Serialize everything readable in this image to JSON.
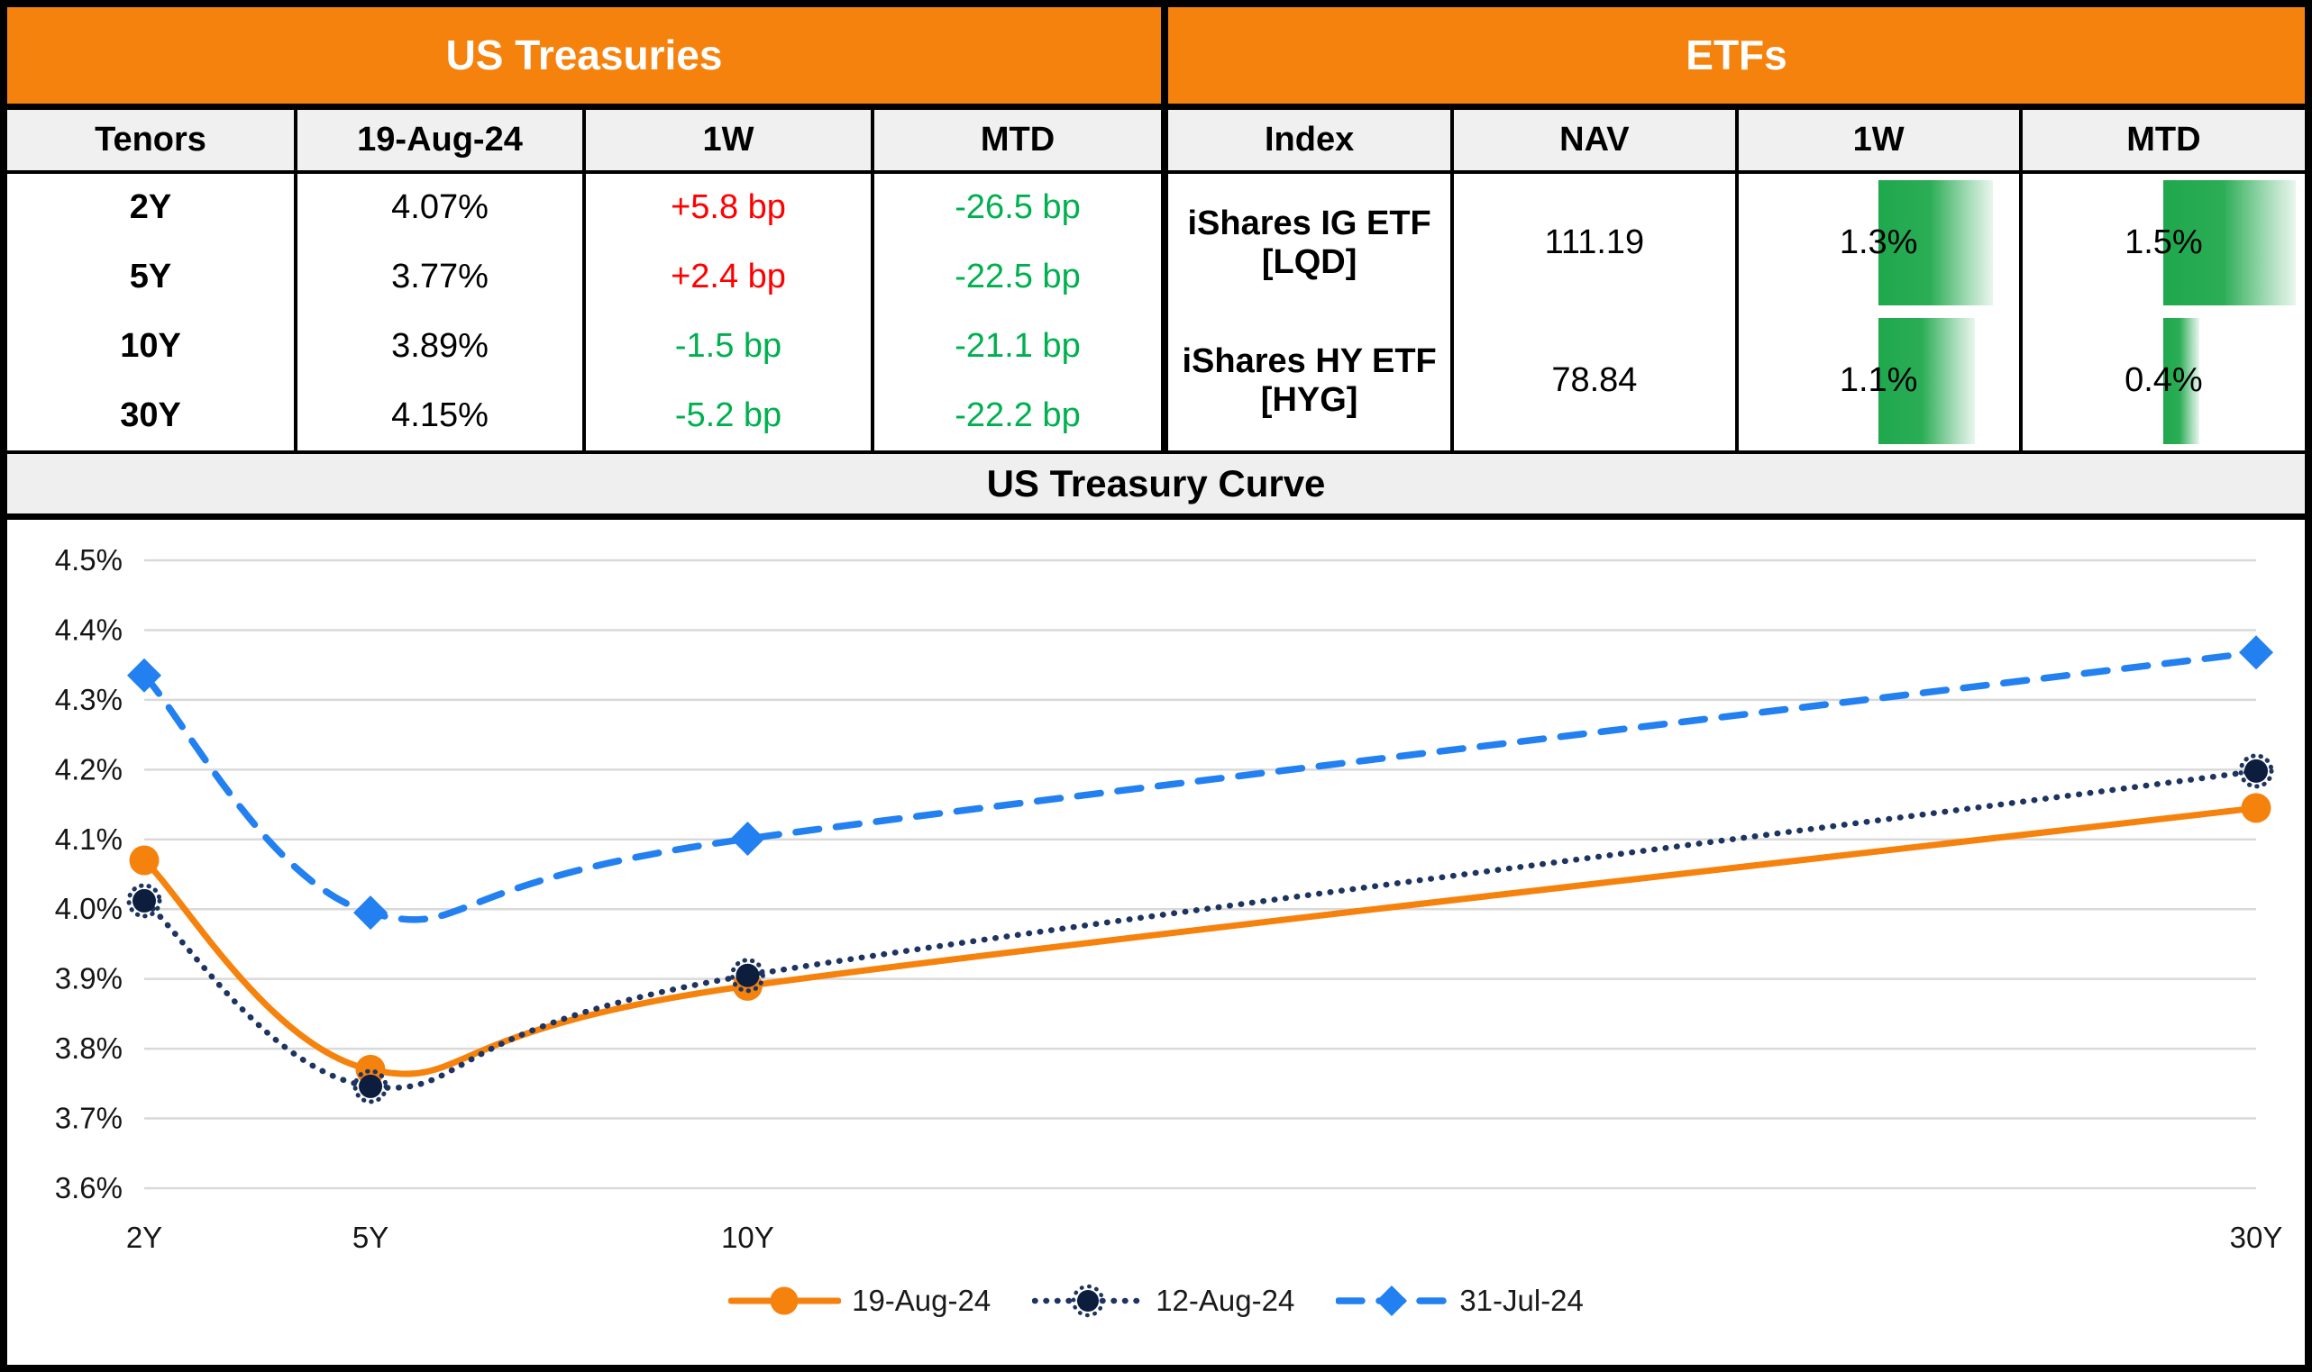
{
  "treasuries_table": {
    "title": "US Treasuries",
    "columns": [
      "Tenors",
      "19-Aug-24",
      "1W",
      "MTD"
    ],
    "rows": [
      {
        "tenor": "2Y",
        "rate": "4.07%",
        "one_week": "+5.8 bp",
        "one_week_direction": "up",
        "mtd": "-26.5 bp",
        "mtd_direction": "down"
      },
      {
        "tenor": "5Y",
        "rate": "3.77%",
        "one_week": "+2.4 bp",
        "one_week_direction": "up",
        "mtd": "-22.5 bp",
        "mtd_direction": "down"
      },
      {
        "tenor": "10Y",
        "rate": "3.89%",
        "one_week": "-1.5 bp",
        "one_week_direction": "down",
        "mtd": "-21.1 bp",
        "mtd_direction": "down"
      },
      {
        "tenor": "30Y",
        "rate": "4.15%",
        "one_week": "-5.2 bp",
        "one_week_direction": "down",
        "mtd": "-22.2 bp",
        "mtd_direction": "down"
      }
    ],
    "up_color": "#FF0000",
    "down_color": "#00B050"
  },
  "etfs_table": {
    "title": "ETFs",
    "columns": [
      "Index",
      "NAV",
      "1W",
      "MTD"
    ],
    "rows": [
      {
        "index": "iShares IG ETF [LQD]",
        "nav": "111.19",
        "one_week_label": "1.3%",
        "one_week_value": 1.3,
        "mtd_label": "1.5%",
        "mtd_value": 1.5
      },
      {
        "index": "iShares HY ETF [HYG]",
        "nav": "78.84",
        "one_week_label": "1.1%",
        "one_week_value": 1.1,
        "mtd_label": "0.4%",
        "mtd_value": 0.4
      }
    ],
    "databar": {
      "scale_max": 1.6,
      "color_left": "#1FA84D",
      "color_right": "#E9F6EE"
    }
  },
  "chart": {
    "title": "US Treasury Curve"
  },
  "chart_data": {
    "type": "line",
    "title": "US Treasury Curve",
    "x_years": [
      2,
      5,
      10,
      30
    ],
    "x_tick_labels": [
      "2Y",
      "5Y",
      "10Y",
      "30Y"
    ],
    "y_tick_labels": [
      "4.5%",
      "4.4%",
      "4.3%",
      "4.2%",
      "4.1%",
      "4.0%",
      "3.9%",
      "3.8%",
      "3.7%",
      "3.6%"
    ],
    "ylim": [
      3.6,
      4.5
    ],
    "ytick_step": 0.1,
    "grid": true,
    "legend_position": "bottom",
    "series": [
      {
        "name": "19-Aug-24",
        "values": [
          4.07,
          3.77,
          3.89,
          4.145
        ],
        "color": "#F6820E",
        "marker_fill": "#F6820E",
        "line_style": "solid",
        "marker": "circle"
      },
      {
        "name": "12-Aug-24",
        "values": [
          4.012,
          3.746,
          3.905,
          4.198
        ],
        "color": "#1E3460",
        "marker_fill": "#0D1D3D",
        "line_style": "dotted",
        "marker": "circle-dotted"
      },
      {
        "name": "31-Jul-24",
        "values": [
          4.335,
          3.995,
          4.101,
          4.368
        ],
        "color": "#2280F0",
        "marker_fill": "#2280F0",
        "line_style": "dashed",
        "marker": "diamond"
      }
    ]
  },
  "theme": {
    "header_bg": "#F6820E",
    "header_text": "#FFFFFF",
    "subheader_bg": "#F0F0F0",
    "band_bg": "#EFEFEF",
    "grid_color": "#D9D9D9",
    "axis_text_color": "#161616"
  }
}
